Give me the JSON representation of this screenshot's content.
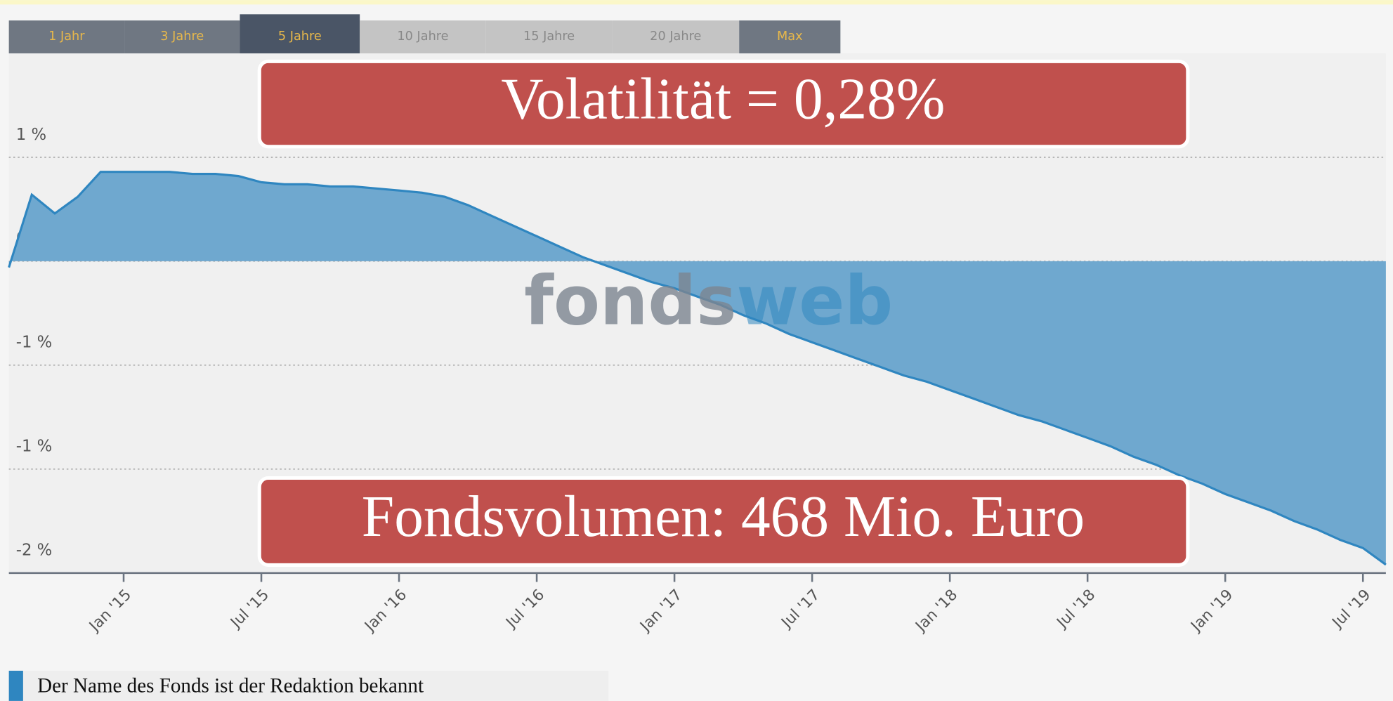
{
  "range_buttons": [
    "1 Jahr",
    "3 Jahre",
    "5 Jahre",
    "10 Jahre",
    "15 Jahre",
    "20 Jahre",
    "Max"
  ],
  "watermark": {
    "left": "fonds",
    "right": "web"
  },
  "chart_data": {
    "type": "area",
    "annotations": [
      "Volatilität = 0,28%",
      "Fondsvolumen: 468 Mio. Euro"
    ],
    "x": [
      "2014-08",
      "2014-09",
      "2014-10",
      "2014-11",
      "2014-12",
      "2015-01",
      "2015-02",
      "2015-03",
      "2015-04",
      "2015-05",
      "2015-06",
      "2015-07",
      "2015-08",
      "2015-09",
      "2015-10",
      "2015-11",
      "2015-12",
      "2016-01",
      "2016-02",
      "2016-03",
      "2016-04",
      "2016-05",
      "2016-06",
      "2016-07",
      "2016-08",
      "2016-09",
      "2016-10",
      "2016-11",
      "2016-12",
      "2017-01",
      "2017-02",
      "2017-03",
      "2017-04",
      "2017-05",
      "2017-06",
      "2017-07",
      "2017-08",
      "2017-09",
      "2017-10",
      "2017-11",
      "2017-12",
      "2018-01",
      "2018-02",
      "2018-03",
      "2018-04",
      "2018-05",
      "2018-06",
      "2018-07",
      "2018-08",
      "2018-09",
      "2018-10",
      "2018-11",
      "2018-12",
      "2019-01",
      "2019-02",
      "2019-03",
      "2019-04",
      "2019-05",
      "2019-06",
      "2019-07",
      "2019-08"
    ],
    "series": [
      {
        "name": "Der Name des Fonds ist der Redaktion bekannt",
        "color": "#2f86c0",
        "fill": "#6fa8cf",
        "values": [
          -0.03,
          0.32,
          0.23,
          0.31,
          0.43,
          0.43,
          0.43,
          0.43,
          0.42,
          0.42,
          0.41,
          0.38,
          0.37,
          0.37,
          0.36,
          0.36,
          0.35,
          0.34,
          0.33,
          0.31,
          0.27,
          0.22,
          0.17,
          0.12,
          0.07,
          0.02,
          -0.02,
          -0.06,
          -0.1,
          -0.13,
          -0.17,
          -0.21,
          -0.26,
          -0.3,
          -0.35,
          -0.39,
          -0.43,
          -0.47,
          -0.51,
          -0.55,
          -0.58,
          -0.62,
          -0.66,
          -0.7,
          -0.74,
          -0.77,
          -0.81,
          -0.85,
          -0.89,
          -0.94,
          -0.98,
          -1.03,
          -1.07,
          -1.12,
          -1.16,
          -1.2,
          -1.25,
          -1.29,
          -1.34,
          -1.38,
          -1.46
        ]
      }
    ],
    "xlim": [
      "2014-08",
      "2019-08"
    ],
    "xticks": [
      {
        "value": "2015-01",
        "label": "Jan '15"
      },
      {
        "value": "2015-07",
        "label": "Jul '15"
      },
      {
        "value": "2016-01",
        "label": "Jan '16"
      },
      {
        "value": "2016-07",
        "label": "Jul '16"
      },
      {
        "value": "2017-01",
        "label": "Jan '17"
      },
      {
        "value": "2017-07",
        "label": "Jul '17"
      },
      {
        "value": "2018-01",
        "label": "Jan '18"
      },
      {
        "value": "2018-07",
        "label": "Jul '18"
      },
      {
        "value": "2019-01",
        "label": "Jan '19"
      },
      {
        "value": "2019-07",
        "label": "Jul '19"
      }
    ],
    "ylim": [
      -1.5,
      1.0
    ],
    "yticks": [
      {
        "value": 0.5,
        "label": "1 %"
      },
      {
        "value": 0,
        "label": "0 %"
      },
      {
        "value": -0.5,
        "label": "-1 %"
      },
      {
        "value": -1,
        "label": "-1 %"
      },
      {
        "value": -1.5,
        "label": "-2 %"
      }
    ],
    "grid": true,
    "legend": "bottom-left"
  }
}
